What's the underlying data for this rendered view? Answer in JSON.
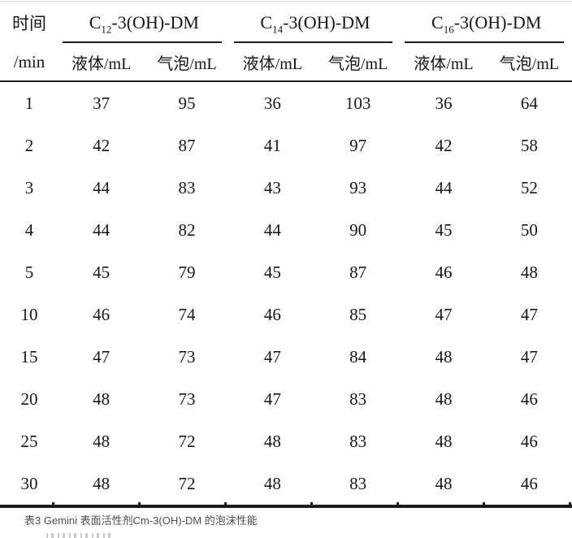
{
  "table": {
    "time_header": {
      "line1": "时间",
      "line2": "/min"
    },
    "groups": [
      {
        "pre": "C",
        "sub": "12",
        "post": "-3(OH)-DM",
        "label": "C12-3(OH)-DM"
      },
      {
        "pre": "C",
        "sub": "14",
        "post": "-3(OH)-DM",
        "label": "C14-3(OH)-DM"
      },
      {
        "pre": "C",
        "sub": "16",
        "post": "-3(OH)-DM",
        "label": "C16-3(OH)-DM"
      }
    ],
    "subheaders": {
      "liquid": "液体/mL",
      "foam": "气泡/mL"
    },
    "rows": [
      {
        "time": "1",
        "values": [
          37,
          95,
          36,
          103,
          36,
          64
        ]
      },
      {
        "time": "2",
        "values": [
          42,
          87,
          41,
          97,
          42,
          58
        ]
      },
      {
        "time": "3",
        "values": [
          44,
          83,
          43,
          93,
          44,
          52
        ]
      },
      {
        "time": "4",
        "values": [
          44,
          82,
          44,
          90,
          45,
          50
        ]
      },
      {
        "time": "5",
        "values": [
          45,
          79,
          45,
          87,
          46,
          48
        ]
      },
      {
        "time": "10",
        "values": [
          46,
          74,
          46,
          85,
          47,
          47
        ]
      },
      {
        "time": "15",
        "values": [
          47,
          73,
          47,
          84,
          48,
          47
        ]
      },
      {
        "time": "20",
        "values": [
          48,
          73,
          47,
          83,
          48,
          46
        ]
      },
      {
        "time": "25",
        "values": [
          48,
          72,
          48,
          83,
          48,
          46
        ]
      },
      {
        "time": "30",
        "values": [
          48,
          72,
          48,
          83,
          48,
          46
        ]
      }
    ]
  },
  "caption": "表3 Gemini 表面活性剂Cm-3(OH)-DM 的泡沫性能",
  "colors": {
    "text": "#171717",
    "rule": "#1b1b1b",
    "caption_text": "#4d4d4d",
    "top_edge": "#dcdcdc",
    "background": "#ffffff"
  },
  "chart_data": {
    "type": "table",
    "title": "表3 Gemini 表面活性剂Cm-3(OH)-DM 的泡沫性能",
    "row_header": "时间/min",
    "column_groups": [
      "C12-3(OH)-DM",
      "C14-3(OH)-DM",
      "C16-3(OH)-DM"
    ],
    "sub_columns": [
      "液体/mL",
      "气泡/mL"
    ],
    "time_min": [
      1,
      2,
      3,
      4,
      5,
      10,
      15,
      20,
      25,
      30
    ],
    "series": [
      {
        "name": "C12-3(OH)-DM 液体/mL",
        "values": [
          37,
          42,
          44,
          44,
          45,
          46,
          47,
          48,
          48,
          48
        ]
      },
      {
        "name": "C12-3(OH)-DM 气泡/mL",
        "values": [
          95,
          87,
          83,
          82,
          79,
          74,
          73,
          73,
          72,
          72
        ]
      },
      {
        "name": "C14-3(OH)-DM 液体/mL",
        "values": [
          36,
          41,
          43,
          44,
          45,
          46,
          47,
          47,
          48,
          48
        ]
      },
      {
        "name": "C14-3(OH)-DM 气泡/mL",
        "values": [
          103,
          97,
          93,
          90,
          87,
          85,
          84,
          83,
          83,
          83
        ]
      },
      {
        "name": "C16-3(OH)-DM 液体/mL",
        "values": [
          36,
          42,
          44,
          45,
          46,
          47,
          48,
          48,
          48,
          48
        ]
      },
      {
        "name": "C16-3(OH)-DM 气泡/mL",
        "values": [
          64,
          58,
          52,
          50,
          48,
          47,
          47,
          46,
          46,
          46
        ]
      }
    ]
  }
}
